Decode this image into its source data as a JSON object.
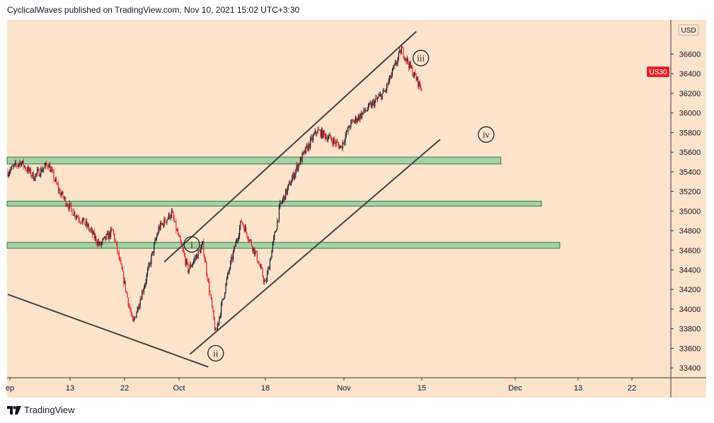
{
  "header": "CyclicalWaves published on TradingView.com, Nov 10, 2021 15:02 UTC+3:30",
  "footer": {
    "brand": "TradingView",
    "logo_icon": "tradingview-logo-icon"
  },
  "colors": {
    "background": "#fbe3cc",
    "up_candle": "#131722",
    "down_candle": "#e8222b",
    "zone_fill": "#a9d0a4",
    "zone_stroke": "#2f7a55",
    "trendline": "#444444",
    "price_tag": "#e8222b"
  },
  "chart_data": {
    "type": "candlestick",
    "currency": "USD",
    "symbol_tag": "US30",
    "last_price": 36240,
    "x_ticks": [
      "ep",
      "13",
      "22",
      "Oct",
      "18",
      "Nov",
      "15",
      "Dec",
      "13",
      "22"
    ],
    "y_ticks": [
      33400,
      33600,
      33800,
      34000,
      34200,
      34400,
      34600,
      34800,
      35000,
      35200,
      35400,
      35600,
      35800,
      36000,
      36200,
      36400,
      36600
    ],
    "ylim": [
      33300,
      36950
    ],
    "grid": false,
    "wave_labels": [
      {
        "text": "i",
        "bar": 200,
        "price": 34660
      },
      {
        "text": "ii",
        "bar": 226,
        "price": 33550
      },
      {
        "text": "iii",
        "bar": 449,
        "price": 36560
      },
      {
        "text": "iv",
        "bar": 520,
        "price": 35780
      }
    ],
    "zones": [
      {
        "price_low": 35480,
        "price_high": 35550,
        "bar_end": 536
      },
      {
        "price_low": 35050,
        "price_high": 35100,
        "bar_end": 580
      },
      {
        "price_low": 34620,
        "price_high": 34680,
        "bar_end": 600
      }
    ],
    "trendlines": [
      {
        "bar1": 0,
        "price1": 34150,
        "bar2": 218,
        "price2": 33410
      },
      {
        "bar1": 170,
        "price1": 34480,
        "bar2": 444,
        "price2": 36830
      },
      {
        "bar1": 198,
        "price1": 33540,
        "bar2": 470,
        "price2": 35730
      }
    ],
    "price_path": [
      [
        0,
        35400
      ],
      [
        14,
        35500
      ],
      [
        28,
        35350
      ],
      [
        44,
        35480
      ],
      [
        56,
        35200
      ],
      [
        70,
        35000
      ],
      [
        86,
        34850
      ],
      [
        100,
        34650
      ],
      [
        114,
        34800
      ],
      [
        126,
        34300
      ],
      [
        136,
        33850
      ],
      [
        150,
        34300
      ],
      [
        164,
        34820
      ],
      [
        178,
        34980
      ],
      [
        196,
        34400
      ],
      [
        212,
        34650
      ],
      [
        226,
        33750
      ],
      [
        240,
        34380
      ],
      [
        254,
        34900
      ],
      [
        270,
        34550
      ],
      [
        280,
        34250
      ],
      [
        296,
        35050
      ],
      [
        316,
        35480
      ],
      [
        336,
        35820
      ],
      [
        352,
        35730
      ],
      [
        362,
        35650
      ],
      [
        372,
        35880
      ],
      [
        392,
        36050
      ],
      [
        410,
        36220
      ],
      [
        428,
        36650
      ],
      [
        440,
        36420
      ],
      [
        450,
        36240
      ]
    ]
  }
}
